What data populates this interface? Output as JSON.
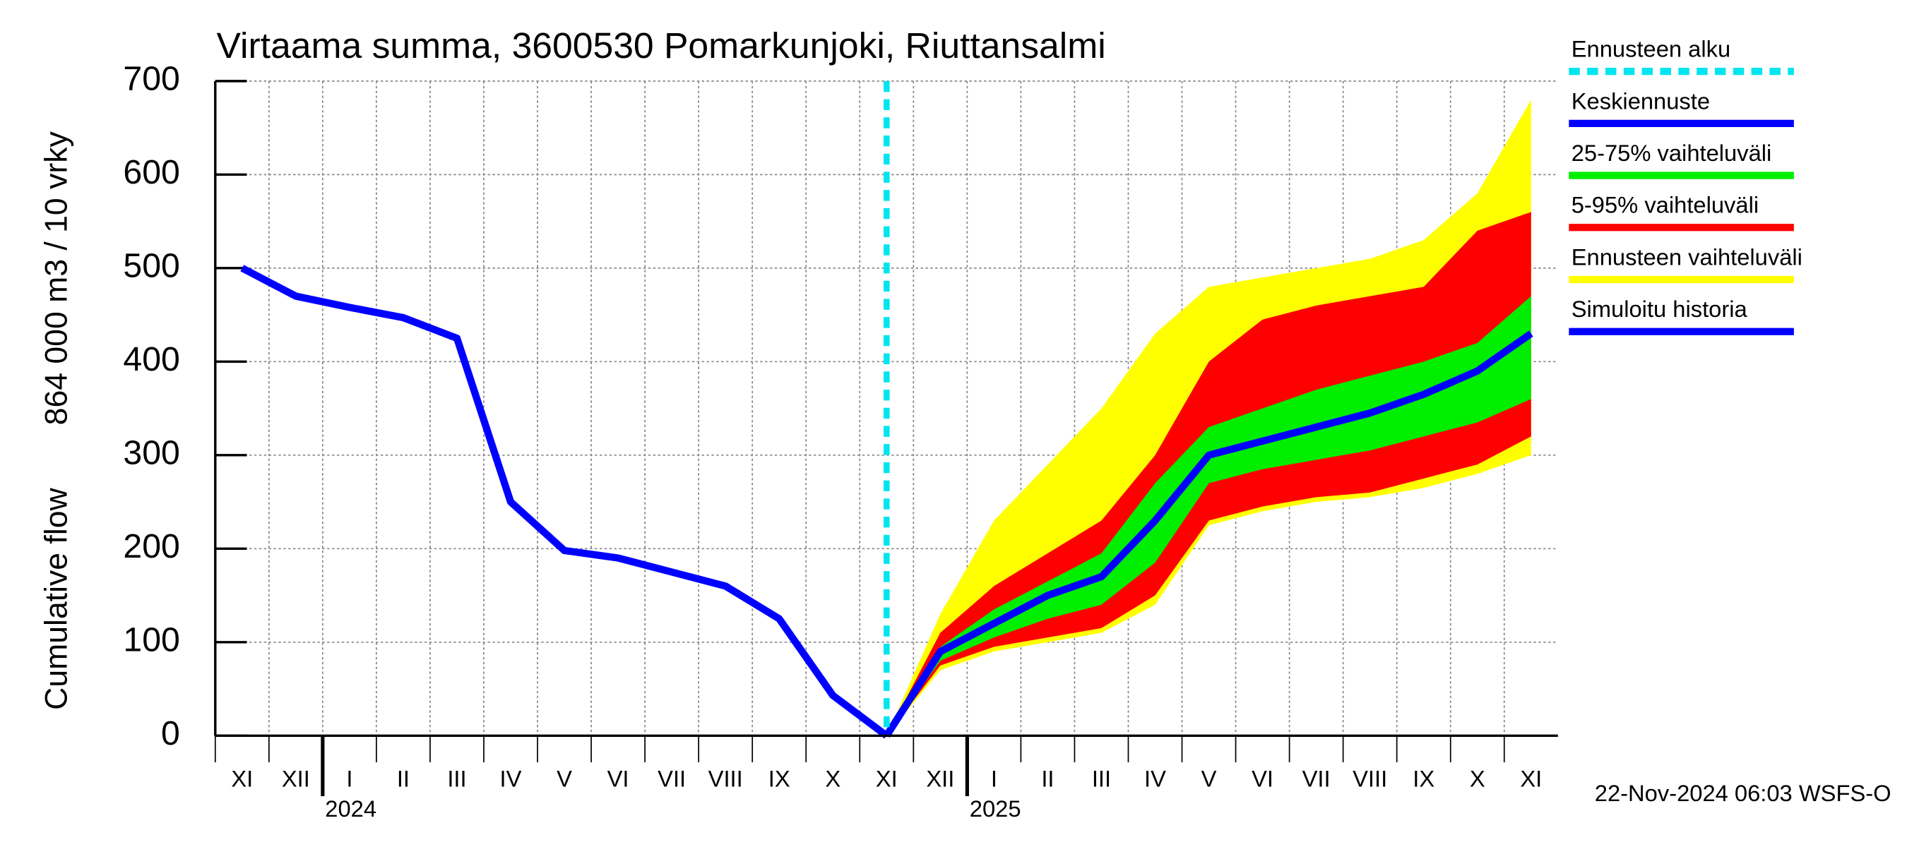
{
  "chart_data": {
    "type": "line",
    "title": "Virtaama summa, 3600530 Pomarkunjoki, Riuttansalmi",
    "ylabel": [
      "Cumulative flow",
      "864 000 m3 / 10 vrky"
    ],
    "footer": "22-Nov-2024 06:03 WSFS-O",
    "categories": [
      "XI",
      "XII",
      "I",
      "II",
      "III",
      "IV",
      "V",
      "VI",
      "VII",
      "VIII",
      "IX",
      "X",
      "XI",
      "XII",
      "I",
      "II",
      "III",
      "IV",
      "V",
      "VI",
      "VII",
      "VIII",
      "IX",
      "X",
      "XI"
    ],
    "years": [
      "2024",
      "2025"
    ],
    "ylim": [
      0,
      700
    ],
    "yticks": [
      0,
      100,
      200,
      300,
      400,
      500,
      600,
      700
    ],
    "grid": true,
    "forecast_start": {
      "name": "Ennusteen alku",
      "color": "#00e5ee"
    },
    "bands": [
      {
        "name": "Ennusteen vaihteluväli",
        "color": "#ffff00",
        "lower": [
          null,
          null,
          null,
          null,
          null,
          null,
          null,
          null,
          null,
          null,
          null,
          null,
          0,
          70,
          90,
          100,
          110,
          140,
          225,
          240,
          250,
          255,
          265,
          280,
          300
        ],
        "upper": [
          null,
          null,
          null,
          null,
          null,
          null,
          null,
          null,
          null,
          null,
          null,
          null,
          0,
          130,
          230,
          290,
          350,
          430,
          480,
          490,
          500,
          510,
          530,
          580,
          680
        ]
      },
      {
        "name": "5-95% vaihteluväli",
        "color": "#ff0000",
        "lower": [
          null,
          null,
          null,
          null,
          null,
          null,
          null,
          null,
          null,
          null,
          null,
          null,
          0,
          75,
          95,
          105,
          115,
          150,
          230,
          245,
          255,
          260,
          275,
          290,
          320
        ],
        "upper": [
          null,
          null,
          null,
          null,
          null,
          null,
          null,
          null,
          null,
          null,
          null,
          null,
          0,
          110,
          160,
          195,
          230,
          300,
          400,
          445,
          460,
          470,
          480,
          540,
          560
        ]
      },
      {
        "name": "25-75% vaihteluväli",
        "color": "#00ee00",
        "lower": [
          null,
          null,
          null,
          null,
          null,
          null,
          null,
          null,
          null,
          null,
          null,
          null,
          0,
          80,
          105,
          125,
          140,
          185,
          270,
          285,
          295,
          305,
          320,
          335,
          360
        ],
        "upper": [
          null,
          null,
          null,
          null,
          null,
          null,
          null,
          null,
          null,
          null,
          null,
          null,
          0,
          95,
          135,
          165,
          195,
          270,
          330,
          350,
          370,
          385,
          400,
          420,
          470
        ]
      }
    ],
    "series": [
      {
        "name": "Keskiennuste",
        "color": "#0000ff",
        "values": [
          null,
          null,
          null,
          null,
          null,
          null,
          null,
          null,
          null,
          null,
          null,
          null,
          0,
          90,
          120,
          150,
          170,
          230,
          300,
          315,
          330,
          345,
          365,
          390,
          430
        ]
      },
      {
        "name": "Simuloitu historia",
        "color": "#0000ff",
        "values": [
          500,
          470,
          458,
          447,
          425,
          250,
          198,
          190,
          175,
          160,
          125,
          43,
          0,
          null,
          null,
          null,
          null,
          null,
          null,
          null,
          null,
          null,
          null,
          null,
          null
        ]
      }
    ]
  }
}
